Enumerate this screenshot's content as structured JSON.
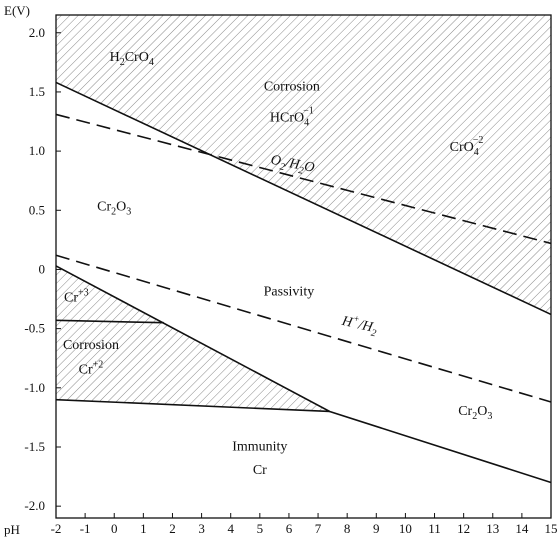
{
  "axes": {
    "y_label": "E(V)",
    "x_label": "pH",
    "y_ticks": [
      {
        "value": 2.0,
        "label": "2.0"
      },
      {
        "value": 1.5,
        "label": "1.5"
      },
      {
        "value": 1.0,
        "label": "1.0"
      },
      {
        "value": 0.5,
        "label": "0.5"
      },
      {
        "value": 0,
        "label": "0"
      },
      {
        "value": -0.5,
        "label": "-0.5"
      },
      {
        "value": -1.0,
        "label": "-1.0"
      },
      {
        "value": -1.5,
        "label": "-1.5"
      },
      {
        "value": -2.0,
        "label": "-2.0"
      }
    ],
    "x_ticks": [
      {
        "value": -2,
        "label": "-2"
      },
      {
        "value": -1,
        "label": "-1"
      },
      {
        "value": 0,
        "label": "0"
      },
      {
        "value": 1,
        "label": "1"
      },
      {
        "value": 2,
        "label": "2"
      },
      {
        "value": 3,
        "label": "3"
      },
      {
        "value": 4,
        "label": "4"
      },
      {
        "value": 5,
        "label": "5"
      },
      {
        "value": 6,
        "label": "6"
      },
      {
        "value": 7,
        "label": "7"
      },
      {
        "value": 8,
        "label": "8"
      },
      {
        "value": 9,
        "label": "9"
      },
      {
        "value": 10,
        "label": "10"
      },
      {
        "value": 11,
        "label": "11"
      },
      {
        "value": 12,
        "label": "12"
      },
      {
        "value": 13,
        "label": "13"
      },
      {
        "value": 14,
        "label": "14"
      },
      {
        "value": 15,
        "label": "15"
      }
    ],
    "xlim": [
      -2,
      15
    ],
    "ylim": [
      -2.1,
      2.15
    ]
  },
  "boundaries": [
    {
      "id": "upper-oxide",
      "style": "solid",
      "points": [
        [
          -2,
          1.58
        ],
        [
          15,
          -0.38
        ]
      ]
    },
    {
      "id": "lower-oxide",
      "style": "solid",
      "points": [
        [
          -2,
          0.03
        ],
        [
          7.4,
          -1.2
        ],
        [
          15,
          -1.8
        ]
      ]
    },
    {
      "id": "cr3-cr2",
      "style": "solid",
      "points": [
        [
          -2,
          -0.43
        ],
        [
          1.7,
          -0.45
        ]
      ]
    },
    {
      "id": "immunity",
      "style": "solid",
      "points": [
        [
          -2,
          -1.1
        ],
        [
          7.4,
          -1.2
        ]
      ]
    },
    {
      "id": "o2-h2o",
      "style": "dashed",
      "points": [
        [
          -2,
          1.31
        ],
        [
          15,
          0.22
        ]
      ]
    },
    {
      "id": "h-h2",
      "style": "dashed",
      "points": [
        [
          -2,
          0.12
        ],
        [
          15,
          -1.12
        ]
      ]
    }
  ],
  "regions": {
    "upper_corrosion": {
      "points": [
        [
          -2,
          2.15
        ],
        [
          15,
          2.15
        ],
        [
          15,
          -0.38
        ],
        [
          -2,
          1.58
        ]
      ]
    },
    "lower_corrosion": {
      "points": [
        [
          -2,
          0.03
        ],
        [
          7.4,
          -1.2
        ],
        [
          -2,
          -1.1
        ]
      ]
    }
  },
  "labels": {
    "h2cro4": {
      "main": "H",
      "sub1": "2",
      "mid": "CrO",
      "sub2": "4",
      "x": 0.6,
      "y": 1.76
    },
    "corrosion_top": {
      "text": "Corrosion",
      "x": 6.1,
      "y": 1.51
    },
    "hcro4": {
      "main": "HCrO",
      "sub": "4",
      "sup": "−1",
      "x": 6.1,
      "y": 1.25
    },
    "cro4": {
      "main": "CrO",
      "sub": "4",
      "sup": "−2",
      "x": 12.1,
      "y": 1.0
    },
    "o2h2o": {
      "text": "O",
      "sub1": "2",
      "mid": "/H",
      "sub2": "2",
      "end": "O",
      "x": 6.1,
      "y": 0.86
    },
    "cr2o3_left": {
      "main": "Cr",
      "sub1": "2",
      "mid": "O",
      "sub2": "3",
      "x": 0.0,
      "y": 0.5
    },
    "passivity": {
      "text": "Passivity",
      "x": 6.0,
      "y": -0.22
    },
    "hh2": {
      "main": "H",
      "sup": "+",
      "mid": "/H",
      "sub": "2",
      "x": 8.4,
      "y": -0.5
    },
    "cr3": {
      "main": "Cr",
      "sup": "+3",
      "x": -1.3,
      "y": -0.27
    },
    "corrosion_low": {
      "text": "Corrosion",
      "x": -0.8,
      "y": -0.67
    },
    "cr2": {
      "main": "Cr",
      "sup": "+2",
      "x": -0.8,
      "y": -0.88
    },
    "cr2o3_right": {
      "main": "Cr",
      "sub1": "2",
      "mid": "O",
      "sub2": "3",
      "x": 12.4,
      "y": -1.23
    },
    "immunity": {
      "text": "Immunity",
      "x": 5.0,
      "y": -1.53
    },
    "cr_metal": {
      "text": "Cr",
      "x": 5.0,
      "y": -1.73
    }
  },
  "style": {
    "hatch_color": "#8a8a8a",
    "line_color": "#111111",
    "background": "#ffffff"
  }
}
